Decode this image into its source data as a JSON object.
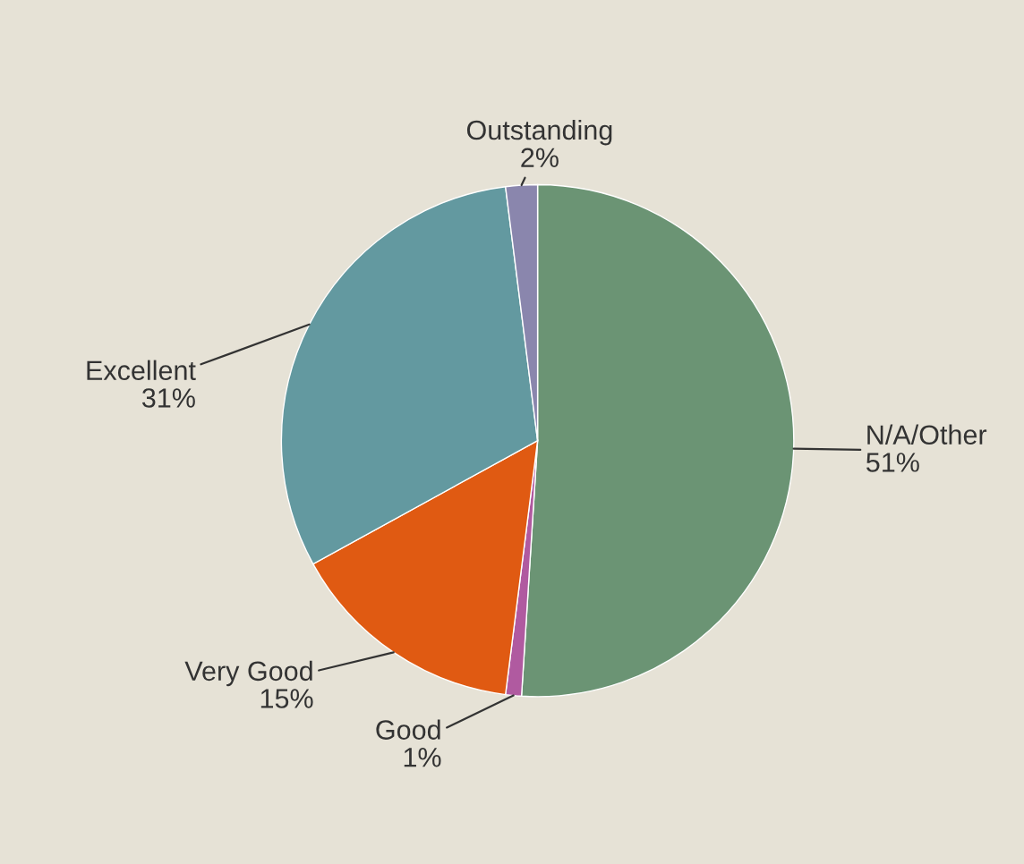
{
  "chart_data": {
    "type": "pie",
    "categories": [
      "N/A/Other",
      "Good",
      "Very Good",
      "Excellent",
      "Outstanding"
    ],
    "values": [
      51,
      1,
      15,
      31,
      2
    ],
    "colors": [
      "#6b9474",
      "#b05aa0",
      "#e05a12",
      "#6399a0",
      "#8a86ad"
    ],
    "value_labels": [
      "51%",
      "1%",
      "15%",
      "31%",
      "2%"
    ],
    "legend": false
  }
}
